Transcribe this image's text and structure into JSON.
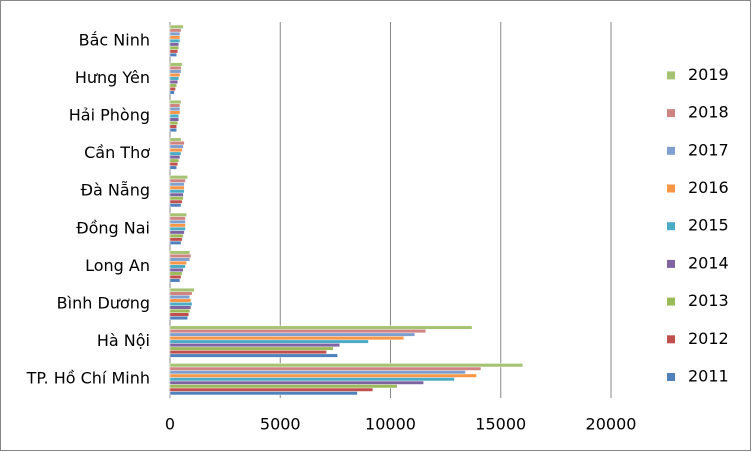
{
  "chart_data": {
    "type": "bar",
    "orientation": "horizontal",
    "categories": [
      "TP. Hồ Chí Minh",
      "Hà Nội",
      "Bình Dương",
      "Long An",
      "Đồng Nai",
      "Đà Nẵng",
      "Cần Thơ",
      "Hải Phòng",
      "Hưng Yên",
      "Bắc Ninh"
    ],
    "series": [
      {
        "name": "2011",
        "color": "#4f81bd",
        "values": [
          8500,
          7600,
          800,
          450,
          500,
          500,
          300,
          300,
          200,
          300
        ]
      },
      {
        "name": "2012",
        "color": "#c0504d",
        "values": [
          9200,
          7100,
          850,
          500,
          550,
          550,
          350,
          300,
          250,
          350
        ]
      },
      {
        "name": "2013",
        "color": "#9bbb59",
        "values": [
          10300,
          7400,
          900,
          550,
          600,
          600,
          400,
          350,
          300,
          400
        ]
      },
      {
        "name": "2014",
        "color": "#8064a2",
        "values": [
          11500,
          7700,
          950,
          600,
          650,
          600,
          450,
          400,
          350,
          400
        ]
      },
      {
        "name": "2015",
        "color": "#4bacc6",
        "values": [
          12900,
          9000,
          1000,
          700,
          700,
          650,
          500,
          400,
          400,
          450
        ]
      },
      {
        "name": "2016",
        "color": "#f79646",
        "values": [
          13900,
          10600,
          950,
          750,
          700,
          650,
          550,
          450,
          450,
          450
        ]
      },
      {
        "name": "2017",
        "color": "#7f9fcf",
        "values": [
          13400,
          11100,
          900,
          900,
          700,
          650,
          600,
          450,
          500,
          450
        ]
      },
      {
        "name": "2018",
        "color": "#d08481",
        "values": [
          14100,
          11600,
          1000,
          950,
          700,
          700,
          650,
          450,
          500,
          500
        ]
      },
      {
        "name": "2019",
        "color": "#a5c372",
        "values": [
          16000,
          13700,
          1100,
          900,
          750,
          800,
          500,
          500,
          550,
          600
        ]
      }
    ],
    "xlim": [
      0,
      20000
    ],
    "xticks": [
      0,
      5000,
      10000,
      15000,
      20000
    ],
    "grid": true,
    "legend": "right"
  }
}
